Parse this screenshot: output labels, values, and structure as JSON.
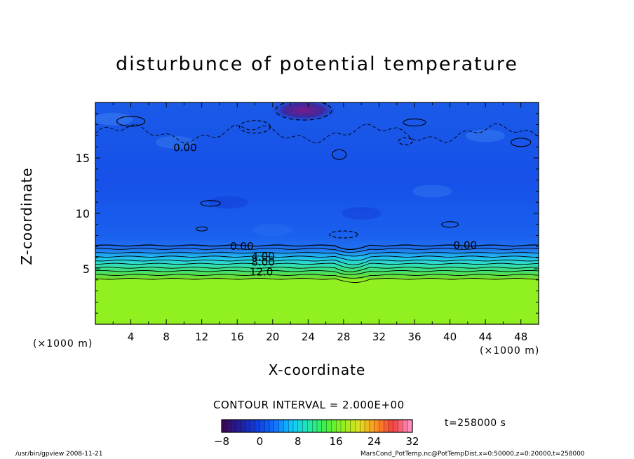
{
  "chart_data": {
    "type": "heatmap",
    "title": "disturbunce of potential temperature",
    "xlabel": "X-coordinate",
    "ylabel": "Z-coordinate",
    "x_unit_left": "(×1000 m)",
    "x_unit_right": "(×1000 m)",
    "xlim": [
      0,
      50
    ],
    "ylim": [
      0,
      20
    ],
    "x_ticks": [
      4,
      8,
      12,
      16,
      20,
      24,
      28,
      32,
      36,
      40,
      44,
      48
    ],
    "y_ticks": [
      5,
      10,
      15
    ],
    "contour_interval_text": "CONTOUR INTERVAL = 2.000E+00",
    "contour_labels": [
      {
        "text": "0.00",
        "x": 15.2,
        "z": 6.7
      },
      {
        "text": "4.00",
        "x": 17.6,
        "z": 5.8
      },
      {
        "text": "8.00",
        "x": 17.6,
        "z": 5.3
      },
      {
        "text": "12.0",
        "x": 17.4,
        "z": 4.4
      },
      {
        "text": "0.00",
        "x": 40.4,
        "z": 6.8
      },
      {
        "text": "0.00",
        "x": 8.8,
        "z": 15.6
      }
    ],
    "colorbar": {
      "min": -8,
      "max": 32,
      "ticks": [
        -8,
        0,
        8,
        16,
        24,
        32
      ],
      "colors": [
        "#3a0a5a",
        "#2020a0",
        "#1040e0",
        "#1070ff",
        "#10c8ff",
        "#20e8b0",
        "#40f040",
        "#90f020",
        "#e0e020",
        "#ff9020",
        "#f04040",
        "#ff90c0"
      ]
    },
    "field_summary": {
      "upper_layer_value": -1,
      "lower_layer_value": 16,
      "transition_height": 5.5,
      "minimum_region": {
        "x": 23.5,
        "z": 19.3,
        "value": -7
      }
    },
    "time_label": "t=258000 s"
  },
  "footer": {
    "left": "/usr/bin/gpview   2008-11-21",
    "right": "MarsCond_PotTemp.nc@PotTempDist,x=0:50000,z=0:20000,t=258000"
  }
}
